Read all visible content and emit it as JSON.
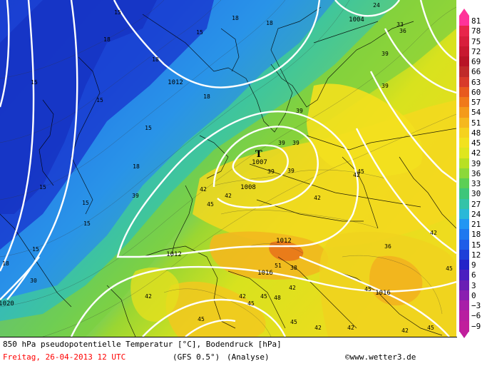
{
  "map": {
    "isobars": [
      "1004",
      "1007",
      "1008",
      "1012",
      "1012",
      "1012",
      "1016",
      "1016",
      "1020"
    ],
    "low_marker": "T",
    "temperature_labels": [
      "15",
      "15",
      "15",
      "15",
      "15",
      "15",
      "15",
      "15",
      "15",
      "18",
      "18",
      "18",
      "18",
      "18",
      "18",
      "18",
      "24",
      "30",
      "33",
      "36",
      "36",
      "38",
      "39",
      "39",
      "39",
      "39",
      "39",
      "39",
      "39",
      "39",
      "42",
      "42",
      "42",
      "42",
      "42",
      "42",
      "42",
      "42",
      "42",
      "42",
      "42",
      "45",
      "45",
      "45",
      "45",
      "45",
      "45",
      "45",
      "45",
      "45",
      "48",
      "51"
    ]
  },
  "legend": {
    "ticks": [
      "81",
      "78",
      "75",
      "72",
      "69",
      "66",
      "63",
      "60",
      "57",
      "54",
      "51",
      "48",
      "45",
      "42",
      "39",
      "36",
      "33",
      "30",
      "27",
      "24",
      "21",
      "18",
      "15",
      "12",
      "9",
      "6",
      "3",
      "0",
      "−3",
      "−6",
      "−9"
    ],
    "colors": [
      "#ff3399",
      "#e8264a",
      "#d81f3c",
      "#c81930",
      "#b81426",
      "#c02a2a",
      "#d83a2a",
      "#e85a1e",
      "#f07a1a",
      "#f49a1a",
      "#f5b81e",
      "#f5d21e",
      "#f2e21e",
      "#dfe61e",
      "#b8e023",
      "#8cd83a",
      "#5ccf55",
      "#3ec67a",
      "#34c3a8",
      "#2ab8d8",
      "#2196f3",
      "#1e78ef",
      "#1e5ce8",
      "#1e3fd8",
      "#2424c8",
      "#4a1ec0",
      "#6a1eb4",
      "#8a1eb0",
      "#a81ea8",
      "#b81ea0",
      "#c01e9c"
    ]
  },
  "footer": {
    "title": "850 hPa pseudopotentielle Temperatur [°C], Bodendruck [hPa]",
    "date": "Freitag, 26-04-2013  12 UTC",
    "model": "(GFS 0.5°)",
    "analyse": "(Analyse)",
    "copyright": "©www.wetter3.de"
  }
}
